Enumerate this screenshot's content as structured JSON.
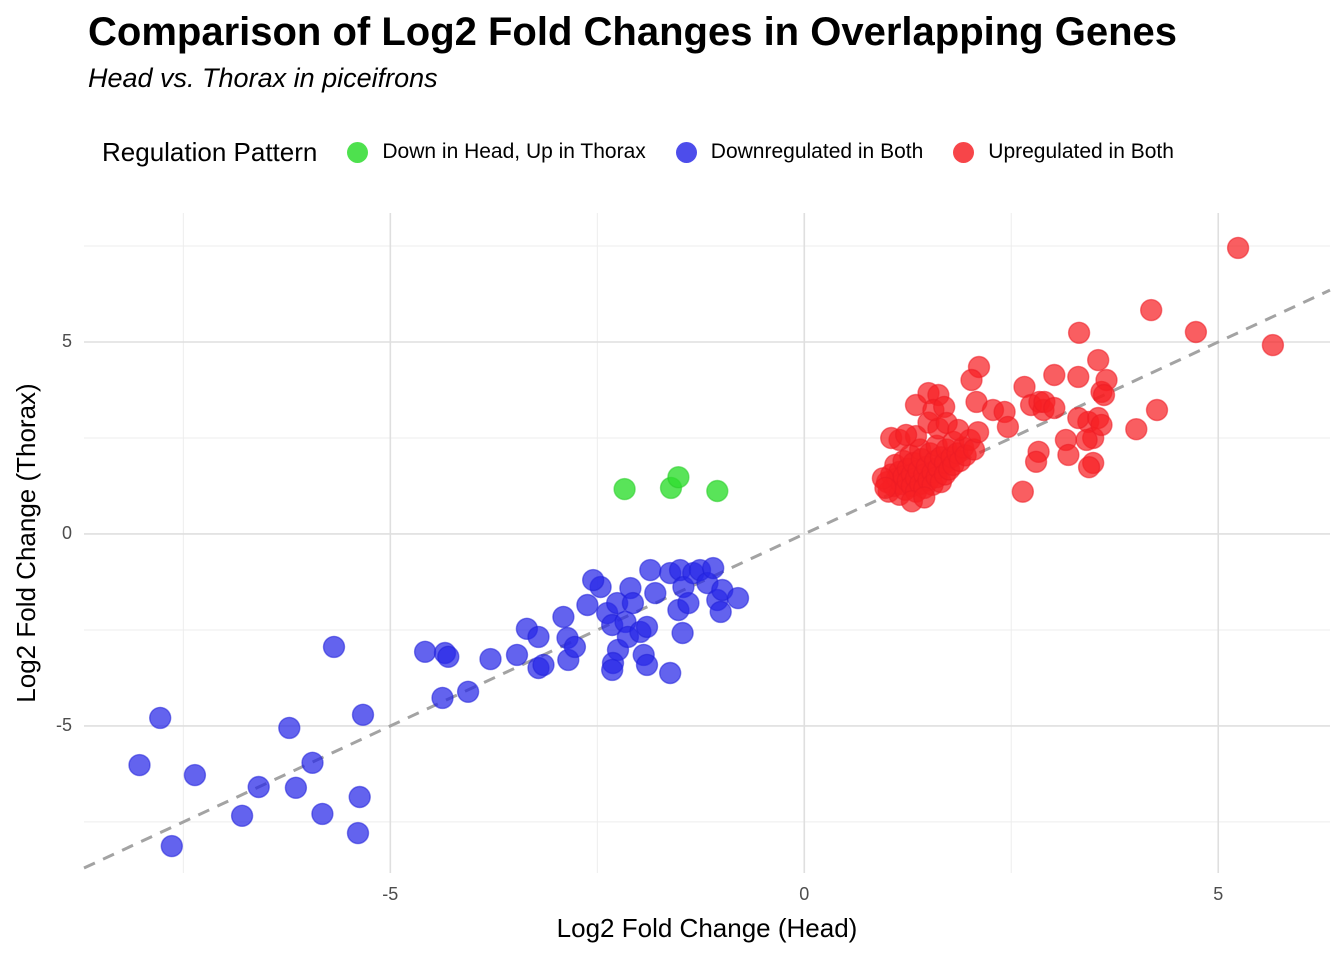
{
  "title": "Comparison of Log2 Fold Changes in Overlapping Genes",
  "subtitle": "Head vs. Thorax in piceifrons",
  "legend": {
    "title": "Regulation Pattern",
    "position": "top",
    "items": [
      {
        "label": "Down in Head, Up in Thorax",
        "color": "#35dd35"
      },
      {
        "label": "Downregulated in Both",
        "color": "#3434e8"
      },
      {
        "label": "Upregulated in Both",
        "color": "#f62b30"
      }
    ]
  },
  "chart_data": {
    "type": "scatter",
    "title": "Comparison of Log2 Fold Changes in Overlapping Genes",
    "subtitle": "Head vs. Thorax in piceifrons",
    "xlabel": "Log2 Fold Change (Head)",
    "ylabel": "Log2 Fold Change (Thorax)",
    "xlim": [
      -8.7,
      6.35
    ],
    "ylim": [
      -8.83,
      8.36
    ],
    "xticks": [
      -5,
      0,
      5
    ],
    "xticks_minor": [
      -7.5,
      -2.5,
      2.5
    ],
    "yticks": [
      -5,
      0,
      5
    ],
    "yticks_minor": [
      -7.5,
      -2.5,
      2.5,
      7.5
    ],
    "grid": "major+minor",
    "reference_line": {
      "type": "abline",
      "slope": 1,
      "intercept": 0,
      "style": "dashed",
      "color": "#a3a3a3"
    },
    "series": [
      {
        "name": "Down in Head, Up in Thorax",
        "fill": "#30dd30",
        "stroke": "#28cc28",
        "opacity": 0.8,
        "points": [
          [
            -2.17,
            1.17
          ],
          [
            -1.61,
            1.2
          ],
          [
            -1.52,
            1.48
          ],
          [
            -1.05,
            1.12
          ]
        ]
      },
      {
        "name": "Downregulated in Both",
        "fill": "#2727e8",
        "stroke": "#2020d8",
        "opacity": 0.72,
        "points": [
          [
            -7.78,
            -4.79
          ],
          [
            -8.03,
            -6.02
          ],
          [
            -7.36,
            -6.28
          ],
          [
            -6.59,
            -6.59
          ],
          [
            -6.22,
            -5.05
          ],
          [
            -6.14,
            -6.61
          ],
          [
            -5.94,
            -5.96
          ],
          [
            -5.82,
            -7.29
          ],
          [
            -5.33,
            -4.71
          ],
          [
            -5.37,
            -6.85
          ],
          [
            -5.39,
            -7.79
          ],
          [
            -6.79,
            -7.34
          ],
          [
            -7.64,
            -8.13
          ],
          [
            -5.68,
            -2.94
          ],
          [
            -4.58,
            -3.07
          ],
          [
            -4.34,
            -3.1
          ],
          [
            -4.3,
            -3.2
          ],
          [
            -3.79,
            -3.26
          ],
          [
            -3.47,
            -3.15
          ],
          [
            -3.35,
            -2.47
          ],
          [
            -3.21,
            -2.68
          ],
          [
            -3.21,
            -3.49
          ],
          [
            -4.37,
            -4.27
          ],
          [
            -4.06,
            -4.11
          ],
          [
            -2.91,
            -2.16
          ],
          [
            -2.86,
            -2.71
          ],
          [
            -2.85,
            -3.28
          ],
          [
            -2.77,
            -2.94
          ],
          [
            -2.62,
            -1.85
          ],
          [
            -2.46,
            -1.38
          ],
          [
            -2.38,
            -2.06
          ],
          [
            -2.32,
            -2.37
          ],
          [
            -2.26,
            -1.8
          ],
          [
            -2.25,
            -3.02
          ],
          [
            -2.31,
            -3.36
          ],
          [
            -2.1,
            -1.41
          ],
          [
            -2.07,
            -1.8
          ],
          [
            -2.16,
            -2.29
          ],
          [
            -2.13,
            -2.68
          ],
          [
            -1.98,
            -2.55
          ],
          [
            -1.9,
            -2.42
          ],
          [
            -1.86,
            -0.94
          ],
          [
            -1.8,
            -1.54
          ],
          [
            -1.62,
            -1.02
          ],
          [
            -1.5,
            -0.94
          ],
          [
            -1.46,
            -1.38
          ],
          [
            -1.52,
            -1.98
          ],
          [
            -1.4,
            -1.8
          ],
          [
            -1.34,
            -1.02
          ],
          [
            -1.26,
            -0.94
          ],
          [
            -1.17,
            -1.28
          ],
          [
            -1.1,
            -0.89
          ],
          [
            -1.05,
            -1.72
          ],
          [
            -0.99,
            -1.46
          ],
          [
            -1.01,
            -2.03
          ],
          [
            -1.47,
            -2.58
          ],
          [
            -1.94,
            -3.15
          ],
          [
            -1.9,
            -3.41
          ],
          [
            -2.32,
            -3.54
          ],
          [
            -1.62,
            -3.62
          ],
          [
            -0.8,
            -1.67
          ],
          [
            -3.15,
            -3.41
          ],
          [
            -2.55,
            -1.2
          ]
        ]
      },
      {
        "name": "Upregulated in Both",
        "fill": "#f62024",
        "stroke": "#ed1c24",
        "opacity": 0.72,
        "points": [
          [
            1.0,
            1.35
          ],
          [
            1.02,
            1.1
          ],
          [
            1.05,
            1.55
          ],
          [
            1.08,
            1.25
          ],
          [
            1.1,
            1.8
          ],
          [
            1.12,
            1.45
          ],
          [
            1.15,
            1.02
          ],
          [
            1.15,
            1.62
          ],
          [
            1.18,
            1.3
          ],
          [
            1.2,
            1.9
          ],
          [
            1.2,
            1.5
          ],
          [
            1.22,
            1.15
          ],
          [
            1.25,
            1.7
          ],
          [
            1.25,
            1.38
          ],
          [
            1.28,
            2.05
          ],
          [
            1.3,
            1.55
          ],
          [
            1.3,
            1.25
          ],
          [
            1.32,
            1.85
          ],
          [
            1.35,
            1.45
          ],
          [
            1.35,
            1.1
          ],
          [
            1.38,
            1.65
          ],
          [
            1.4,
            2.2
          ],
          [
            1.4,
            1.3
          ],
          [
            1.42,
            1.95
          ],
          [
            1.45,
            1.55
          ],
          [
            1.45,
            1.2
          ],
          [
            1.48,
            1.75
          ],
          [
            1.5,
            1.4
          ],
          [
            1.52,
            2.1
          ],
          [
            1.55,
            1.6
          ],
          [
            1.55,
            1.28
          ],
          [
            1.58,
            1.9
          ],
          [
            1.6,
            2.3
          ],
          [
            1.6,
            1.48
          ],
          [
            1.62,
            1.72
          ],
          [
            1.65,
            2.0
          ],
          [
            1.65,
            1.35
          ],
          [
            1.7,
            1.85
          ],
          [
            1.7,
            1.55
          ],
          [
            1.72,
            2.2
          ],
          [
            1.75,
            1.68
          ],
          [
            1.78,
            2.0
          ],
          [
            1.8,
            2.4
          ],
          [
            1.8,
            1.8
          ],
          [
            1.85,
            2.1
          ],
          [
            1.88,
            1.9
          ],
          [
            1.92,
            2.25
          ],
          [
            1.95,
            2.05
          ],
          [
            2.0,
            2.45
          ],
          [
            2.05,
            2.2
          ],
          [
            0.95,
            1.45
          ],
          [
            0.98,
            1.2
          ],
          [
            1.3,
            0.85
          ],
          [
            1.45,
            0.95
          ],
          [
            1.15,
            2.45
          ],
          [
            1.35,
            2.55
          ],
          [
            1.05,
            2.5
          ],
          [
            1.23,
            2.58
          ],
          [
            1.5,
            2.9
          ],
          [
            1.62,
            2.75
          ],
          [
            1.35,
            3.36
          ],
          [
            1.5,
            3.67
          ],
          [
            1.62,
            3.62
          ],
          [
            1.56,
            3.23
          ],
          [
            1.69,
            3.31
          ],
          [
            1.72,
            2.89
          ],
          [
            1.86,
            2.71
          ],
          [
            2.11,
            4.35
          ],
          [
            2.02,
            4.01
          ],
          [
            2.08,
            3.44
          ],
          [
            2.28,
            3.23
          ],
          [
            2.42,
            3.18
          ],
          [
            2.46,
            2.79
          ],
          [
            2.66,
            3.83
          ],
          [
            2.74,
            3.36
          ],
          [
            2.84,
            3.44
          ],
          [
            2.89,
            3.23
          ],
          [
            3.02,
            4.14
          ],
          [
            3.32,
            5.24
          ],
          [
            3.31,
            4.09
          ],
          [
            3.43,
            2.92
          ],
          [
            3.55,
            4.53
          ],
          [
            3.59,
            3.7
          ],
          [
            3.31,
            3.02
          ],
          [
            3.16,
            2.45
          ],
          [
            4.19,
            5.83
          ],
          [
            4.73,
            5.26
          ],
          [
            5.24,
            7.45
          ],
          [
            5.66,
            4.92
          ],
          [
            3.65,
            4.01
          ],
          [
            3.62,
            3.62
          ],
          [
            4.26,
            3.23
          ],
          [
            4.01,
            2.73
          ],
          [
            3.55,
            3.02
          ],
          [
            3.49,
            2.5
          ],
          [
            3.49,
            1.85
          ],
          [
            2.64,
            1.1
          ],
          [
            3.19,
            2.06
          ],
          [
            3.44,
            1.74
          ],
          [
            3.41,
            2.45
          ],
          [
            3.59,
            2.84
          ],
          [
            2.83,
            2.14
          ],
          [
            2.8,
            1.88
          ],
          [
            2.9,
            3.44
          ],
          [
            3.02,
            3.28
          ],
          [
            2.1,
            2.65
          ]
        ]
      }
    ]
  },
  "style": {
    "grid_major_color": "#dfdfdf",
    "grid_minor_color": "#ededed",
    "tick_label_color": "#4d4d4d",
    "background": "#ffffff"
  }
}
